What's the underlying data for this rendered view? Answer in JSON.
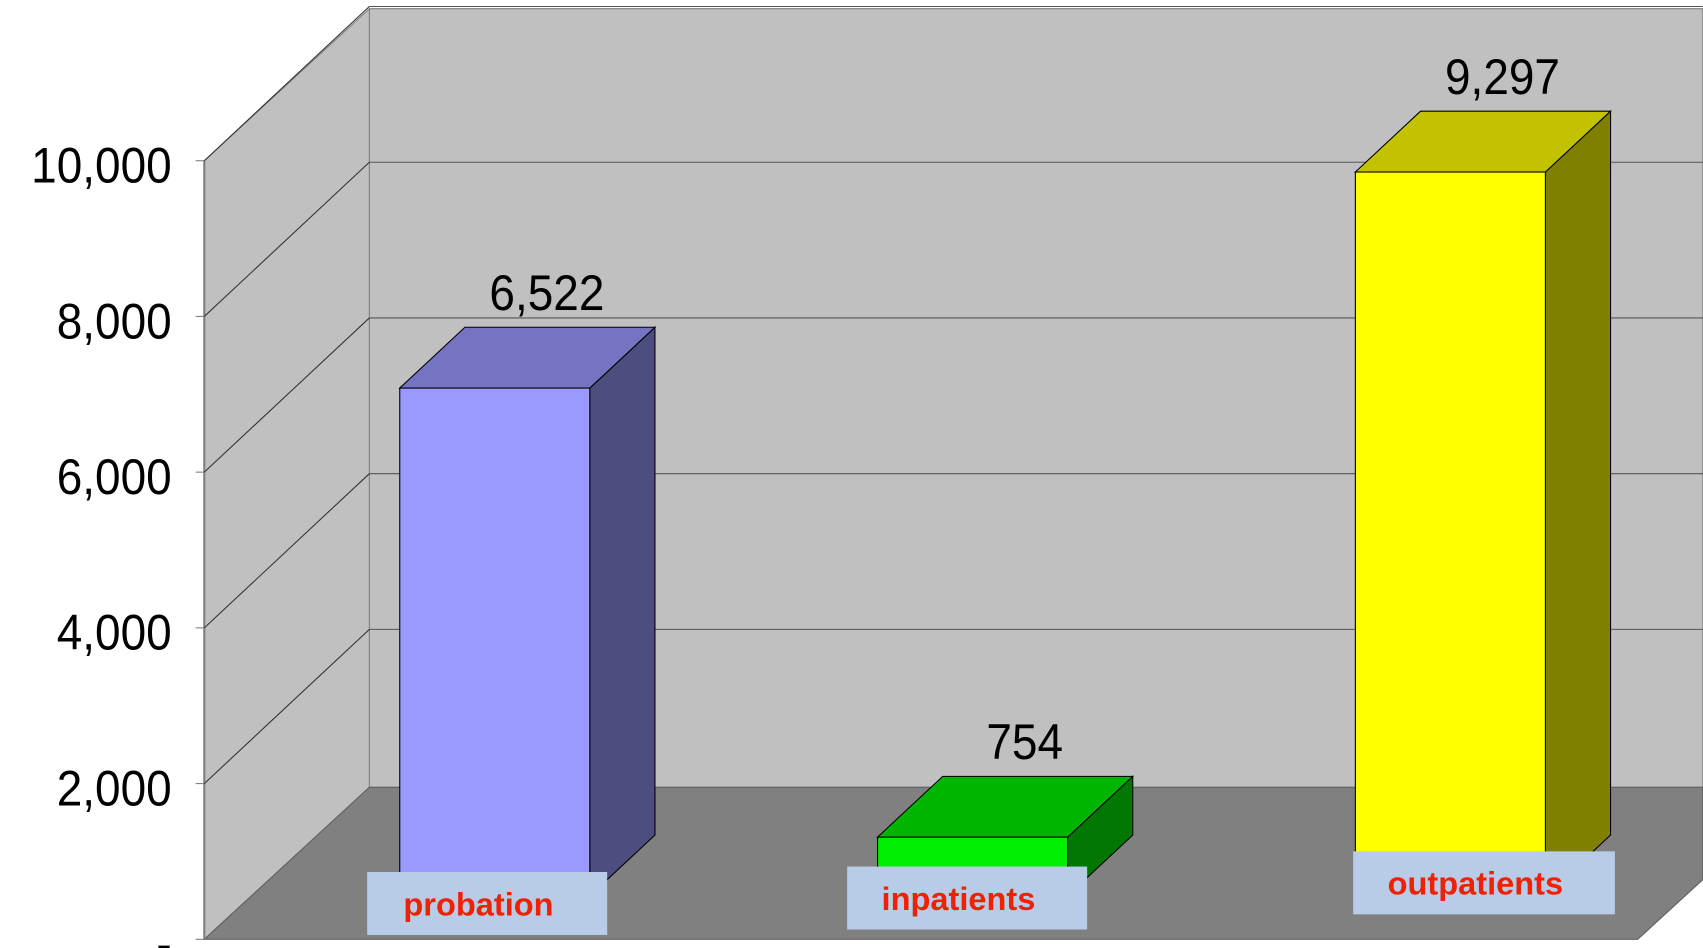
{
  "chart_data": {
    "type": "bar3d",
    "categories": [
      "probation",
      "inpatients",
      "outpatients"
    ],
    "values": [
      6522,
      754,
      9297
    ],
    "value_labels": [
      "6,522",
      "754",
      "9,297"
    ],
    "colors": [
      "#9999ff",
      "#00ee00",
      "#ffff00"
    ],
    "ylim": [
      0,
      10000
    ],
    "yticks": [
      {
        "value": 0,
        "label": "-"
      },
      {
        "value": 2000,
        "label": "2,000"
      },
      {
        "value": 4000,
        "label": "4,000"
      },
      {
        "value": 6000,
        "label": "6,000"
      },
      {
        "value": 8000,
        "label": "8,000"
      },
      {
        "value": 10000,
        "label": "10,000"
      }
    ],
    "grid": true
  }
}
